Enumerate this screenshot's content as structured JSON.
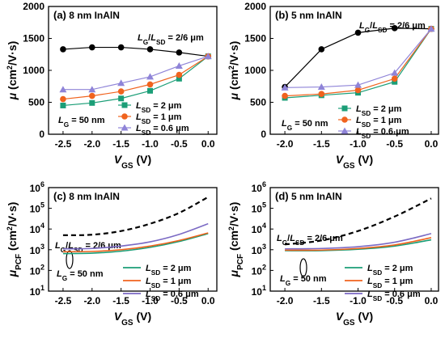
{
  "colors": {
    "black": "#000000",
    "teal": "#1b9e77",
    "orange": "#f0631e",
    "purple": "#7b6ac4",
    "lavender": "#8f84d8"
  },
  "chart_data": [
    {
      "type": "line",
      "panel_label": "(a)",
      "panel_title": "8 nm InAlN",
      "ylabel": "μ (cm²/V·s)",
      "xlabel": "V_GS (V)",
      "xlim": [
        -2.75,
        0.15
      ],
      "ylim": [
        0,
        2000
      ],
      "xticks": [
        "-2.5",
        "-2.0",
        "-1.5",
        "-1.0",
        "-0.5",
        "0.0"
      ],
      "xtick_values": [
        -2.5,
        -2.0,
        -1.5,
        -1.0,
        -0.5,
        0.0
      ],
      "yticks": [
        "0",
        "500",
        "1000",
        "1500",
        "2000"
      ],
      "ytick_values": [
        0,
        500,
        1000,
        1500,
        2000
      ],
      "annotations": [
        {
          "id": "ratio",
          "html_label": "L_G/L_SD = 2/6 μm"
        },
        {
          "id": "lg",
          "html_label": "L_G = 50 nm"
        }
      ],
      "x": [
        -2.5,
        -2.0,
        -1.5,
        -1.0,
        -0.5,
        0.0
      ],
      "series": [
        {
          "name": "L_G/L_SD = 2/6 μm",
          "in_legend": false,
          "color": "black",
          "marker": "circle",
          "values": [
            1330,
            1360,
            1360,
            1330,
            1280,
            1220
          ]
        },
        {
          "name": "L_SD = 2 μm",
          "in_legend": true,
          "color": "teal",
          "marker": "square",
          "values": [
            450,
            490,
            560,
            680,
            870,
            1220
          ]
        },
        {
          "name": "L_SD = 1 μm",
          "in_legend": true,
          "color": "orange",
          "marker": "circle",
          "values": [
            550,
            600,
            670,
            780,
            930,
            1220
          ]
        },
        {
          "name": "L_SD = 0.6 μm",
          "in_legend": true,
          "color": "lavender",
          "marker": "triangle",
          "values": [
            700,
            700,
            800,
            900,
            1070,
            1220
          ]
        }
      ]
    },
    {
      "type": "line",
      "panel_label": "(b)",
      "panel_title": "5 nm InAlN",
      "ylabel": "μ (cm²/V·s)",
      "xlabel": "V_GS (V)",
      "xlim": [
        -2.2,
        0.1
      ],
      "ylim": [
        0,
        2000
      ],
      "xticks": [
        "-2.0",
        "-1.5",
        "-1.0",
        "-0.5",
        "0.0"
      ],
      "xtick_values": [
        -2.0,
        -1.5,
        -1.0,
        -0.5,
        0.0
      ],
      "yticks": [
        "0",
        "500",
        "1000",
        "1500",
        "2000"
      ],
      "ytick_values": [
        0,
        500,
        1000,
        1500,
        2000
      ],
      "annotations": [
        {
          "id": "ratio",
          "html_label": "L_G/L_SD = 2/6 μm"
        },
        {
          "id": "lg",
          "html_label": "L_G = 50 nm"
        }
      ],
      "x": [
        -2.0,
        -1.5,
        -1.0,
        -0.5,
        0.0
      ],
      "series": [
        {
          "name": "L_G/L_SD = 2/6 μm",
          "in_legend": false,
          "color": "black",
          "marker": "circle",
          "values": [
            740,
            1330,
            1590,
            1660,
            1650
          ]
        },
        {
          "name": "L_SD = 2 μm",
          "in_legend": true,
          "color": "teal",
          "marker": "square",
          "values": [
            570,
            610,
            650,
            820,
            1650
          ]
        },
        {
          "name": "L_SD = 1 μm",
          "in_legend": true,
          "color": "orange",
          "marker": "circle",
          "values": [
            600,
            630,
            690,
            870,
            1650
          ]
        },
        {
          "name": "L_SD = 0.6 μm",
          "in_legend": true,
          "color": "lavender",
          "marker": "triangle",
          "values": [
            730,
            740,
            770,
            960,
            1650
          ]
        }
      ]
    },
    {
      "type": "line",
      "scale": "log",
      "panel_label": "(c)",
      "panel_title": "8 nm InAlN",
      "ylabel": "μ_PCF (cm²/V·s)",
      "xlabel": "V_GS (V)",
      "xlim": [
        -2.75,
        0.15
      ],
      "ylim": [
        10,
        1000000
      ],
      "xticks": [
        "-2.5",
        "-2.0",
        "-1.5",
        "-1.0",
        "-0.5",
        "0.0"
      ],
      "xtick_values": [
        -2.5,
        -2.0,
        -1.5,
        -1.0,
        -0.5,
        0.0
      ],
      "yticks_exp": [
        1,
        2,
        3,
        4,
        5,
        6
      ],
      "annotations": [
        {
          "id": "ratio",
          "html_label": "L_G/L_SD = 2/6 μm"
        },
        {
          "id": "lg",
          "html_label": "L_G = 50 nm"
        }
      ],
      "x": [
        -2.5,
        -2.0,
        -1.5,
        -1.0,
        -0.5,
        0.0
      ],
      "series": [
        {
          "name": "L_G/L_SD = 2/6 μm",
          "in_legend": false,
          "color": "black",
          "dashed": true,
          "values": [
            5000,
            5300,
            8000,
            18000,
            60000,
            350000
          ]
        },
        {
          "name": "L_SD = 2 μm",
          "in_legend": true,
          "color": "teal",
          "values": [
            650,
            680,
            850,
            1300,
            2500,
            6000
          ]
        },
        {
          "name": "L_SD = 1 μm",
          "in_legend": true,
          "color": "orange",
          "values": [
            800,
            830,
            1000,
            1500,
            2800,
            6500
          ]
        },
        {
          "name": "L_SD = 0.6 μm",
          "in_legend": true,
          "color": "purple",
          "values": [
            1100,
            1150,
            1500,
            2400,
            5500,
            18000
          ]
        }
      ]
    },
    {
      "type": "line",
      "scale": "log",
      "panel_label": "(d)",
      "panel_title": "5 nm InAlN",
      "ylabel": "μ_PCF (cm²/V·s)",
      "xlabel": "V_GS (V)",
      "xlim": [
        -2.2,
        0.1
      ],
      "ylim": [
        10,
        1000000
      ],
      "xticks": [
        "-2.0",
        "-1.5",
        "-1.0",
        "-0.5",
        "0.0"
      ],
      "xtick_values": [
        -2.0,
        -1.5,
        -1.0,
        -0.5,
        0.0
      ],
      "yticks_exp": [
        1,
        2,
        3,
        4,
        5,
        6
      ],
      "annotations": [
        {
          "id": "ratio",
          "html_label": "L_G/L_SD = 2/6 μm"
        },
        {
          "id": "lg",
          "html_label": "L_G = 50 nm"
        }
      ],
      "x": [
        -2.0,
        -1.5,
        -1.0,
        -0.5,
        0.0
      ],
      "series": [
        {
          "name": "L_G/L_SD = 2/6 μm",
          "in_legend": false,
          "color": "black",
          "dashed": true,
          "values": [
            1800,
            2800,
            8000,
            40000,
            300000
          ]
        },
        {
          "name": "L_SD = 2 μm",
          "in_legend": true,
          "color": "teal",
          "values": [
            900,
            900,
            1050,
            1500,
            3000
          ]
        },
        {
          "name": "L_SD = 1 μm",
          "in_legend": true,
          "color": "orange",
          "values": [
            950,
            960,
            1150,
            1700,
            3800
          ]
        },
        {
          "name": "L_SD = 0.6 μm",
          "in_legend": true,
          "color": "purple",
          "values": [
            1100,
            1150,
            1400,
            2300,
            6000
          ]
        }
      ]
    }
  ]
}
